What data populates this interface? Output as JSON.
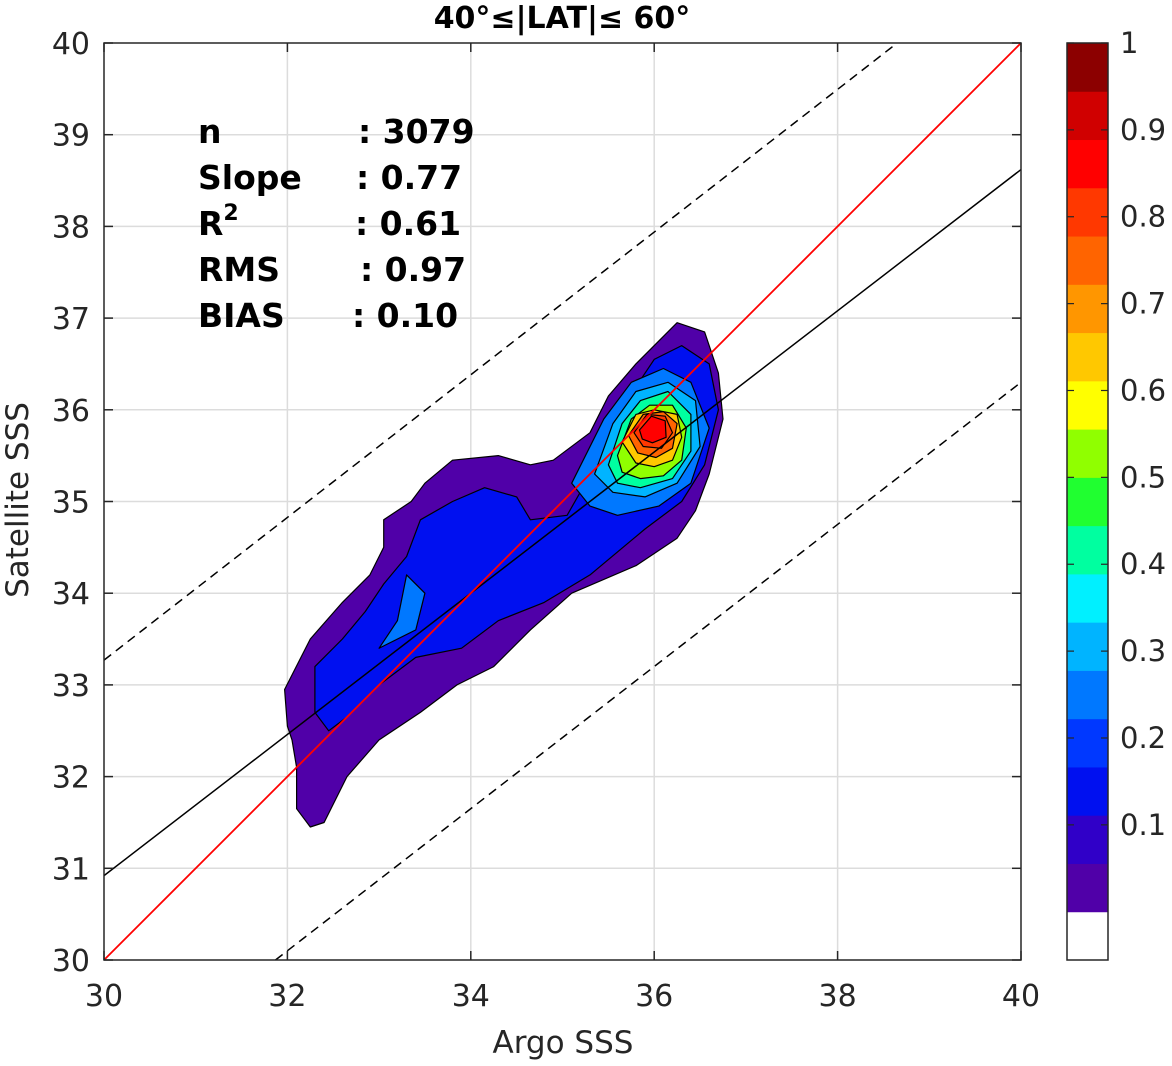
{
  "chart_data": {
    "type": "contour",
    "title": "40°≤|LAT|≤ 60°",
    "xlabel": "Argo SSS",
    "ylabel": "Satellite SSS",
    "xlim": [
      30,
      40
    ],
    "ylim": [
      30,
      40
    ],
    "xticks": [
      "30",
      "32",
      "34",
      "36",
      "38",
      "40"
    ],
    "yticks": [
      "30",
      "31",
      "32",
      "33",
      "34",
      "35",
      "36",
      "37",
      "38",
      "39",
      "40"
    ],
    "grid": true,
    "stats": [
      {
        "label": "n",
        "value": ": 3079"
      },
      {
        "label": "Slope",
        "value": ": 0.77"
      },
      {
        "label": "R",
        "sup": "2",
        "value": ": 0.61"
      },
      {
        "label": "RMS",
        "value": ": 0.97"
      },
      {
        "label": "BIAS",
        "value": ": 0.10"
      }
    ],
    "lines": {
      "one_to_one": {
        "color": "#ff0000",
        "x": [
          30,
          40
        ],
        "y": [
          30,
          40
        ]
      },
      "fit": {
        "color": "#000000",
        "x": [
          30,
          40
        ],
        "y": [
          30.92,
          38.62
        ]
      },
      "upper_bound": {
        "color": "#000000",
        "style": "dashed",
        "x": [
          30,
          38.65
        ],
        "y": [
          33.27,
          40
        ]
      },
      "lower_bound": {
        "color": "#000000",
        "style": "dashed",
        "x": [
          31.87,
          40
        ],
        "y": [
          30,
          36.3
        ]
      }
    },
    "density_peak": {
      "x": 36.0,
      "y": 35.8,
      "max": 1
    },
    "contour_levels": [
      {
        "level": 0.05,
        "polygon": [
          [
            32.0,
            32.55
          ],
          [
            31.97,
            32.95
          ],
          [
            32.25,
            33.5
          ],
          [
            32.6,
            33.9
          ],
          [
            32.9,
            34.2
          ],
          [
            33.05,
            34.5
          ],
          [
            33.05,
            34.8
          ],
          [
            33.35,
            35.0
          ],
          [
            33.5,
            35.2
          ],
          [
            33.8,
            35.45
          ],
          [
            34.3,
            35.5
          ],
          [
            34.65,
            35.4
          ],
          [
            34.9,
            35.45
          ],
          [
            35.3,
            35.75
          ],
          [
            35.5,
            36.15
          ],
          [
            35.8,
            36.5
          ],
          [
            36.25,
            36.95
          ],
          [
            36.55,
            36.85
          ],
          [
            36.7,
            36.4
          ],
          [
            36.75,
            35.9
          ],
          [
            36.6,
            35.3
          ],
          [
            36.45,
            34.9
          ],
          [
            36.25,
            34.6
          ],
          [
            35.8,
            34.3
          ],
          [
            35.1,
            34.0
          ],
          [
            34.65,
            33.6
          ],
          [
            34.25,
            33.2
          ],
          [
            33.85,
            33.0
          ],
          [
            33.45,
            32.7
          ],
          [
            33.0,
            32.4
          ],
          [
            32.65,
            32.0
          ],
          [
            32.4,
            31.5
          ],
          [
            32.25,
            31.45
          ],
          [
            32.1,
            31.65
          ],
          [
            32.1,
            32.1
          ],
          [
            32.05,
            32.4
          ]
        ]
      },
      {
        "level": 0.15,
        "polygon": [
          [
            32.3,
            32.7
          ],
          [
            32.3,
            33.2
          ],
          [
            32.6,
            33.5
          ],
          [
            32.85,
            33.8
          ],
          [
            33.05,
            34.1
          ],
          [
            33.3,
            34.4
          ],
          [
            33.45,
            34.8
          ],
          [
            33.8,
            35.0
          ],
          [
            34.15,
            35.15
          ],
          [
            34.5,
            35.05
          ],
          [
            34.65,
            34.8
          ],
          [
            35.05,
            34.85
          ],
          [
            35.25,
            35.2
          ],
          [
            35.5,
            35.6
          ],
          [
            35.7,
            36.1
          ],
          [
            36.0,
            36.55
          ],
          [
            36.3,
            36.7
          ],
          [
            36.6,
            36.5
          ],
          [
            36.7,
            36.0
          ],
          [
            36.55,
            35.4
          ],
          [
            36.3,
            35.0
          ],
          [
            35.9,
            34.7
          ],
          [
            35.3,
            34.2
          ],
          [
            34.8,
            33.9
          ],
          [
            34.3,
            33.7
          ],
          [
            33.9,
            33.4
          ],
          [
            33.4,
            33.3
          ],
          [
            33.0,
            33.0
          ],
          [
            32.65,
            32.65
          ],
          [
            32.45,
            32.5
          ]
        ]
      },
      {
        "level": 0.25,
        "polygon": [
          [
            33.0,
            33.4
          ],
          [
            33.2,
            33.7
          ],
          [
            33.3,
            34.2
          ],
          [
            33.5,
            34.0
          ],
          [
            33.4,
            33.6
          ]
        ]
      },
      {
        "level": 0.25,
        "polygon": [
          [
            35.1,
            35.2
          ],
          [
            35.45,
            35.9
          ],
          [
            35.75,
            36.3
          ],
          [
            36.1,
            36.45
          ],
          [
            36.4,
            36.3
          ],
          [
            36.6,
            35.8
          ],
          [
            36.4,
            35.2
          ],
          [
            36.05,
            34.95
          ],
          [
            35.6,
            34.85
          ],
          [
            35.3,
            34.95
          ]
        ]
      },
      {
        "level": 0.35,
        "polygon": [
          [
            35.35,
            35.3
          ],
          [
            35.55,
            35.85
          ],
          [
            35.8,
            36.2
          ],
          [
            36.15,
            36.3
          ],
          [
            36.45,
            36.1
          ],
          [
            36.5,
            35.6
          ],
          [
            36.25,
            35.2
          ],
          [
            35.9,
            35.05
          ],
          [
            35.55,
            35.1
          ]
        ]
      },
      {
        "level": 0.45,
        "polygon": [
          [
            35.5,
            35.4
          ],
          [
            35.65,
            35.85
          ],
          [
            35.85,
            36.1
          ],
          [
            36.15,
            36.2
          ],
          [
            36.4,
            35.95
          ],
          [
            36.4,
            35.55
          ],
          [
            36.2,
            35.25
          ],
          [
            35.85,
            35.15
          ],
          [
            35.6,
            35.2
          ]
        ]
      },
      {
        "level": 0.55,
        "polygon": [
          [
            35.6,
            35.5
          ],
          [
            35.75,
            35.9
          ],
          [
            35.95,
            36.05
          ],
          [
            36.2,
            36.05
          ],
          [
            36.35,
            35.8
          ],
          [
            36.3,
            35.45
          ],
          [
            36.1,
            35.28
          ],
          [
            35.85,
            35.25
          ],
          [
            35.65,
            35.32
          ]
        ]
      },
      {
        "level": 0.65,
        "polygon": [
          [
            35.65,
            35.65
          ],
          [
            35.8,
            35.95
          ],
          [
            36.0,
            36.0
          ],
          [
            36.25,
            35.95
          ],
          [
            36.3,
            35.7
          ],
          [
            36.2,
            35.45
          ],
          [
            36.0,
            35.38
          ],
          [
            35.8,
            35.42
          ]
        ]
      },
      {
        "level": 0.75,
        "polygon": [
          [
            35.72,
            35.72
          ],
          [
            35.88,
            35.95
          ],
          [
            36.1,
            35.98
          ],
          [
            36.25,
            35.85
          ],
          [
            36.2,
            35.58
          ],
          [
            36.02,
            35.48
          ],
          [
            35.82,
            35.53
          ]
        ]
      },
      {
        "level": 0.85,
        "polygon": [
          [
            35.78,
            35.75
          ],
          [
            35.92,
            35.95
          ],
          [
            36.12,
            35.93
          ],
          [
            36.2,
            35.75
          ],
          [
            36.08,
            35.58
          ],
          [
            35.88,
            35.6
          ]
        ]
      },
      {
        "level": 0.9,
        "polygon": [
          [
            35.84,
            35.78
          ],
          [
            35.97,
            35.93
          ],
          [
            36.12,
            35.88
          ],
          [
            36.13,
            35.7
          ],
          [
            35.98,
            35.64
          ],
          [
            35.87,
            35.68
          ]
        ]
      }
    ],
    "colorbar": {
      "ticks": [
        "0.1",
        "0.2",
        "0.3",
        "0.4",
        "0.5",
        "0.6",
        "0.7",
        "0.8",
        "0.9",
        "1"
      ],
      "colors": [
        "#ffffff",
        "#5000a8",
        "#3000c8",
        "#0010f0",
        "#0038ff",
        "#0078ff",
        "#00b4ff",
        "#00f0ff",
        "#00ffa0",
        "#20ff30",
        "#90ff00",
        "#ffff00",
        "#ffc800",
        "#ff9600",
        "#ff6400",
        "#ff3800",
        "#ff0000",
        "#d00000",
        "#8c0000"
      ]
    }
  }
}
